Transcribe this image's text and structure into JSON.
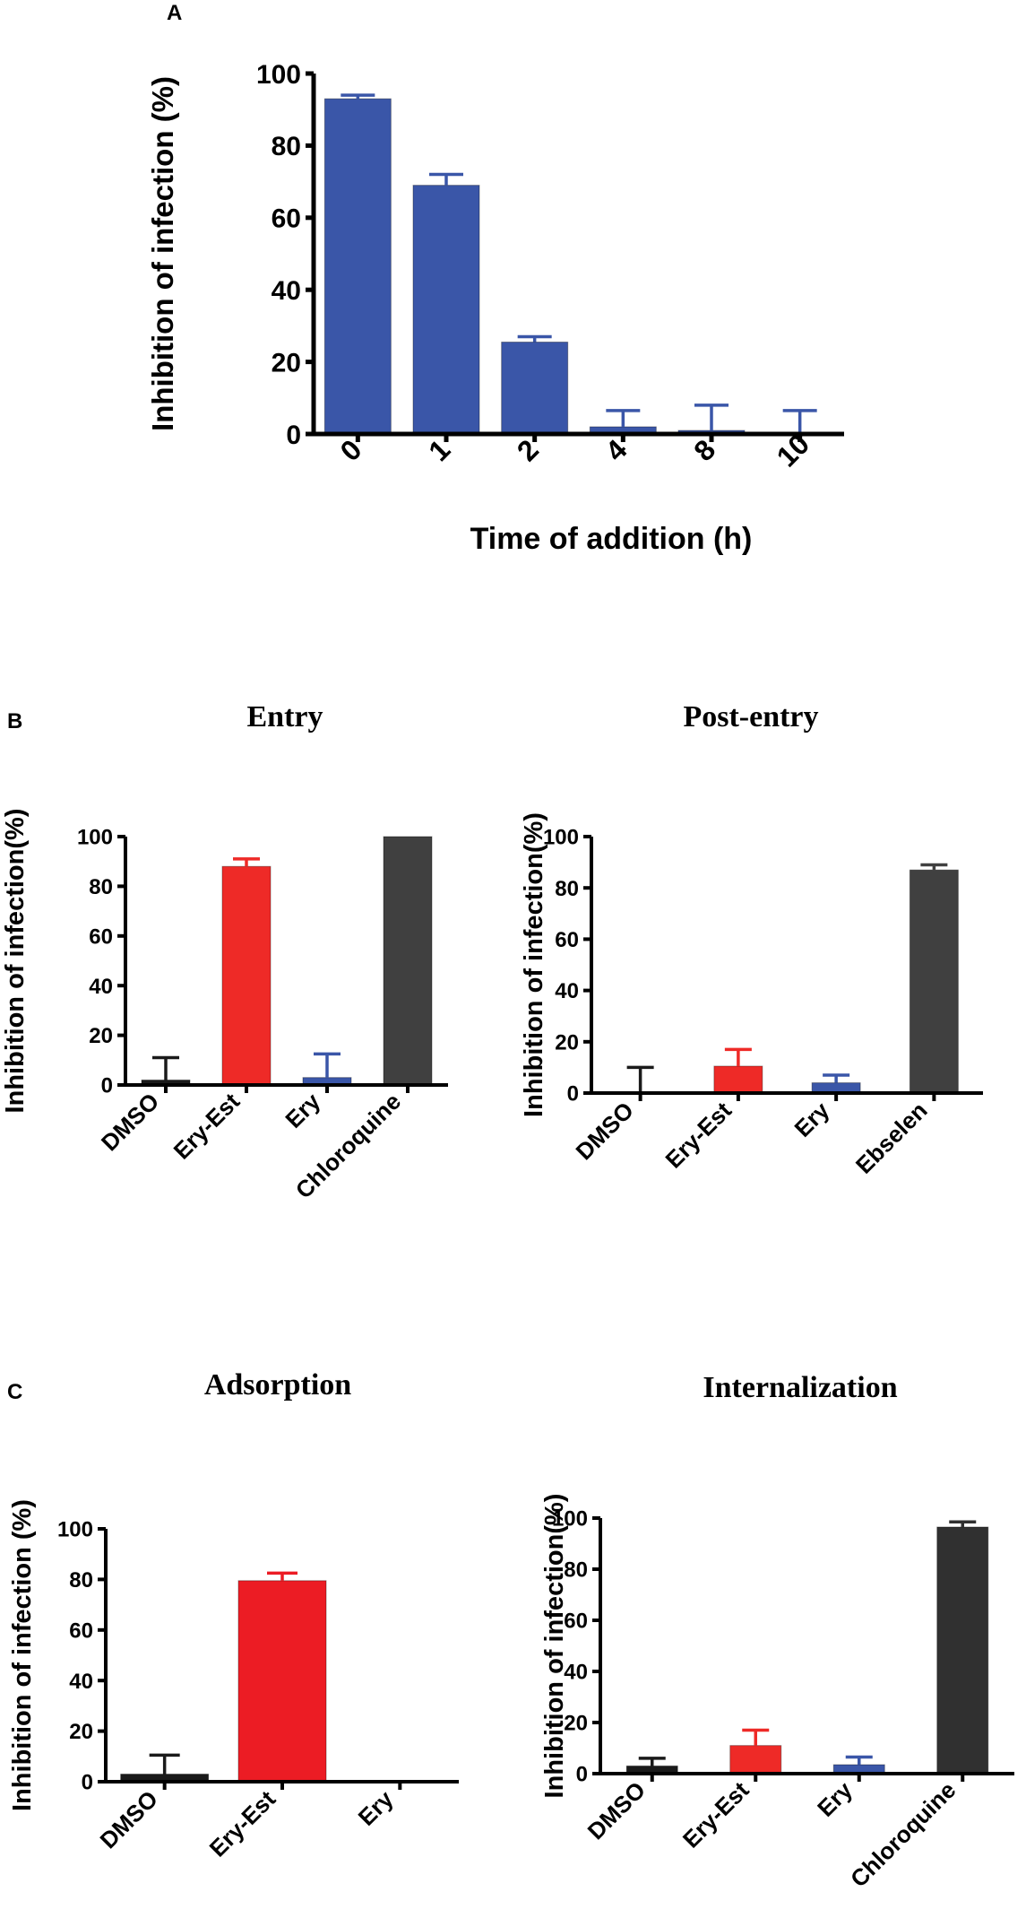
{
  "panel_labels": [
    "A",
    "B",
    "C"
  ],
  "colors": {
    "blue": "#3a56a8",
    "red": "#ee2a27",
    "red2": "#ec1c24",
    "dark": "#404040",
    "black": "#1a1a1a",
    "axis": "#000000"
  },
  "chart_data": [
    {
      "id": "A",
      "type": "bar",
      "title": "",
      "ylabel": "Inhibition of infection (%)",
      "xlabel": "Time of addition (h)",
      "ylim": [
        0,
        100
      ],
      "yticks": [
        0,
        20,
        40,
        60,
        80,
        100
      ],
      "categories": [
        "0",
        "1",
        "2",
        "4",
        "8",
        "10"
      ],
      "values": [
        93,
        69,
        25.5,
        2,
        1,
        0
      ],
      "errors": [
        1,
        3,
        1.5,
        4.5,
        7,
        6.5
      ],
      "colors": [
        "#3a56a8",
        "#3a56a8",
        "#3a56a8",
        "#3a56a8",
        "#3a56a8",
        "#3a56a8"
      ]
    },
    {
      "id": "B-entry",
      "type": "bar",
      "title": "Entry",
      "ylabel": "Inhibition of  infection(%)",
      "xlabel": "",
      "ylim": [
        0,
        100
      ],
      "yticks": [
        0,
        20,
        40,
        60,
        80,
        100
      ],
      "categories": [
        "DMSO",
        "Ery-Est",
        "Ery",
        "Chloroquine"
      ],
      "values": [
        2,
        88,
        3,
        100
      ],
      "errors": [
        9,
        3,
        9.5,
        0
      ],
      "colors": [
        "#1a1a1a",
        "#ee2a27",
        "#3a56a8",
        "#404040"
      ]
    },
    {
      "id": "B-postentry",
      "type": "bar",
      "title": "Post-entry",
      "ylabel": "Inhibition of infection(%)",
      "xlabel": "",
      "ylim": [
        0,
        100
      ],
      "yticks": [
        0,
        20,
        40,
        60,
        80,
        100
      ],
      "categories": [
        "DMSO",
        "Ery-Est",
        "Ery",
        "Ebselen"
      ],
      "values": [
        0,
        10.5,
        4,
        87
      ],
      "errors": [
        10,
        6.5,
        3,
        2
      ],
      "colors": [
        "#1a1a1a",
        "#ee2a27",
        "#3a56a8",
        "#404040"
      ]
    },
    {
      "id": "C-adsorption",
      "type": "bar",
      "title": "Adsorption",
      "ylabel": "Inhibition of infection (%)",
      "xlabel": "",
      "ylim": [
        0,
        100
      ],
      "yticks": [
        0,
        20,
        40,
        60,
        80,
        100
      ],
      "categories": [
        "DMSO",
        "Ery-Est",
        "Ery"
      ],
      "values": [
        3,
        79.5,
        0
      ],
      "errors": [
        7.5,
        3,
        0
      ],
      "colors": [
        "#1a1a1a",
        "#ec1c24",
        "#3a56a8"
      ]
    },
    {
      "id": "C-internalization",
      "type": "bar",
      "title": "Internalization",
      "ylabel": "Inhibition of infection(%)",
      "xlabel": "",
      "ylim": [
        0,
        100
      ],
      "yticks": [
        0,
        20,
        40,
        60,
        80,
        100
      ],
      "categories": [
        "DMSO",
        "Ery-Est",
        "Ery",
        "Chloroquine"
      ],
      "values": [
        3,
        11,
        3.5,
        96.5
      ],
      "errors": [
        3,
        6,
        3,
        2
      ],
      "colors": [
        "#1a1a1a",
        "#ee2a27",
        "#3a56a8",
        "#303030"
      ]
    }
  ]
}
